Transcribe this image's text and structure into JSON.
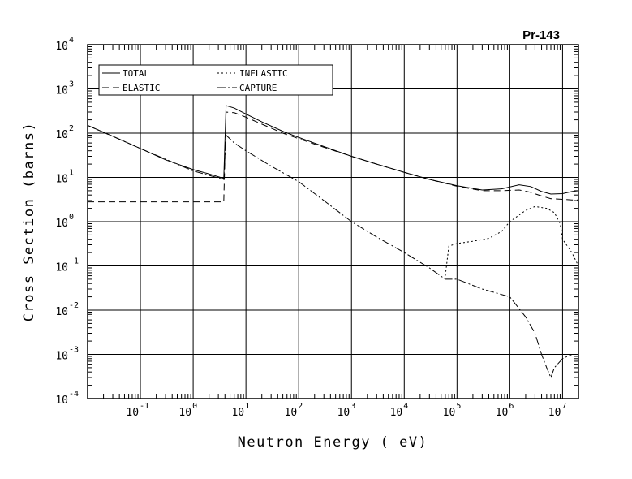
{
  "chart_data": {
    "type": "line",
    "title": "Pr-143",
    "xlabel": "Neutron Energy ( eV)",
    "ylabel": "Cross Section (barns)",
    "x_scale": "log",
    "y_scale": "log",
    "xlim": [
      0.01,
      20000000
    ],
    "ylim": [
      0.0001,
      10000
    ],
    "grid": true,
    "legend_position": "top-left",
    "x_ticks": [
      {
        "value": 0.1,
        "base": "10",
        "exp": "-1"
      },
      {
        "value": 1,
        "base": "10",
        "exp": "0"
      },
      {
        "value": 10,
        "base": "10",
        "exp": "1"
      },
      {
        "value": 100,
        "base": "10",
        "exp": "2"
      },
      {
        "value": 1000,
        "base": "10",
        "exp": "3"
      },
      {
        "value": 10000,
        "base": "10",
        "exp": "4"
      },
      {
        "value": 100000,
        "base": "10",
        "exp": "5"
      },
      {
        "value": 1000000,
        "base": "10",
        "exp": "6"
      },
      {
        "value": 10000000,
        "base": "10",
        "exp": "7"
      }
    ],
    "y_ticks": [
      {
        "value": 10000,
        "base": "10",
        "exp": "4"
      },
      {
        "value": 1000,
        "base": "10",
        "exp": "3"
      },
      {
        "value": 100,
        "base": "10",
        "exp": "2"
      },
      {
        "value": 10,
        "base": "10",
        "exp": "1"
      },
      {
        "value": 1,
        "base": "10",
        "exp": "0"
      },
      {
        "value": 0.1,
        "base": "10",
        "exp": "-1"
      },
      {
        "value": 0.01,
        "base": "10",
        "exp": "-2"
      },
      {
        "value": 0.001,
        "base": "10",
        "exp": "-3"
      },
      {
        "value": 0.0001,
        "base": "10",
        "exp": "-4"
      }
    ],
    "series": [
      {
        "name": "TOTAL",
        "dash": "",
        "x": [
          0.01,
          0.03,
          0.1,
          0.3,
          1,
          2,
          3.8,
          4.2,
          6,
          10,
          20,
          50,
          100,
          300,
          1000,
          3000,
          10000,
          30000,
          100000,
          300000,
          700000,
          1500000,
          2500000,
          4000000,
          6000000,
          10000000,
          15000000,
          20000000
        ],
        "y": [
          150,
          85,
          45,
          25,
          15,
          12,
          9.5,
          420,
          370,
          270,
          180,
          110,
          80,
          50,
          30,
          20,
          13,
          9,
          6.5,
          5.2,
          5.5,
          6.8,
          6.2,
          4.8,
          4.2,
          4.3,
          4.8,
          5.0
        ]
      },
      {
        "name": "ELASTIC",
        "dash": "8 5",
        "x": [
          0.01,
          1,
          3.8,
          4.2,
          6,
          10,
          20,
          50,
          100,
          300,
          1000,
          3000,
          10000,
          30000,
          100000,
          300000,
          700000,
          1500000,
          2500000,
          4000000,
          6000000,
          10000000,
          15000000,
          20000000
        ],
        "y": [
          2.8,
          2.8,
          2.8,
          300,
          290,
          230,
          160,
          100,
          75,
          48,
          30,
          20,
          13,
          9,
          6.3,
          5.0,
          5.0,
          5.2,
          4.6,
          3.8,
          3.3,
          3.2,
          3.1,
          3.1
        ]
      },
      {
        "name": "INELASTIC",
        "dash": "2 3",
        "x": [
          60000,
          70000,
          100000,
          200000,
          400000,
          700000,
          1000000,
          2000000,
          3000000,
          5000000,
          7000000,
          9000000,
          10000000,
          15000000,
          20000000
        ],
        "y": [
          0.06,
          0.28,
          0.32,
          0.36,
          0.42,
          0.6,
          1.0,
          1.8,
          2.2,
          2.0,
          1.6,
          0.9,
          0.4,
          0.2,
          0.1
        ]
      },
      {
        "name": "CAPTURE",
        "dash": "10 3 2 3",
        "x": [
          0.01,
          0.1,
          1,
          3.8,
          4.2,
          6,
          10,
          30,
          100,
          300,
          1000,
          3000,
          10000,
          30000,
          60000,
          100000,
          300000,
          1000000,
          2000000,
          3000000,
          4000000,
          5000000,
          6000000,
          7000000,
          10000000,
          15000000,
          20000000
        ],
        "y": [
          150,
          45,
          14,
          9,
          90,
          60,
          40,
          18,
          8,
          3,
          1.0,
          0.45,
          0.2,
          0.09,
          0.05,
          0.05,
          0.03,
          0.02,
          0.007,
          0.003,
          0.001,
          0.0005,
          0.0003,
          0.0005,
          0.0008,
          0.001,
          0.001
        ]
      }
    ]
  }
}
